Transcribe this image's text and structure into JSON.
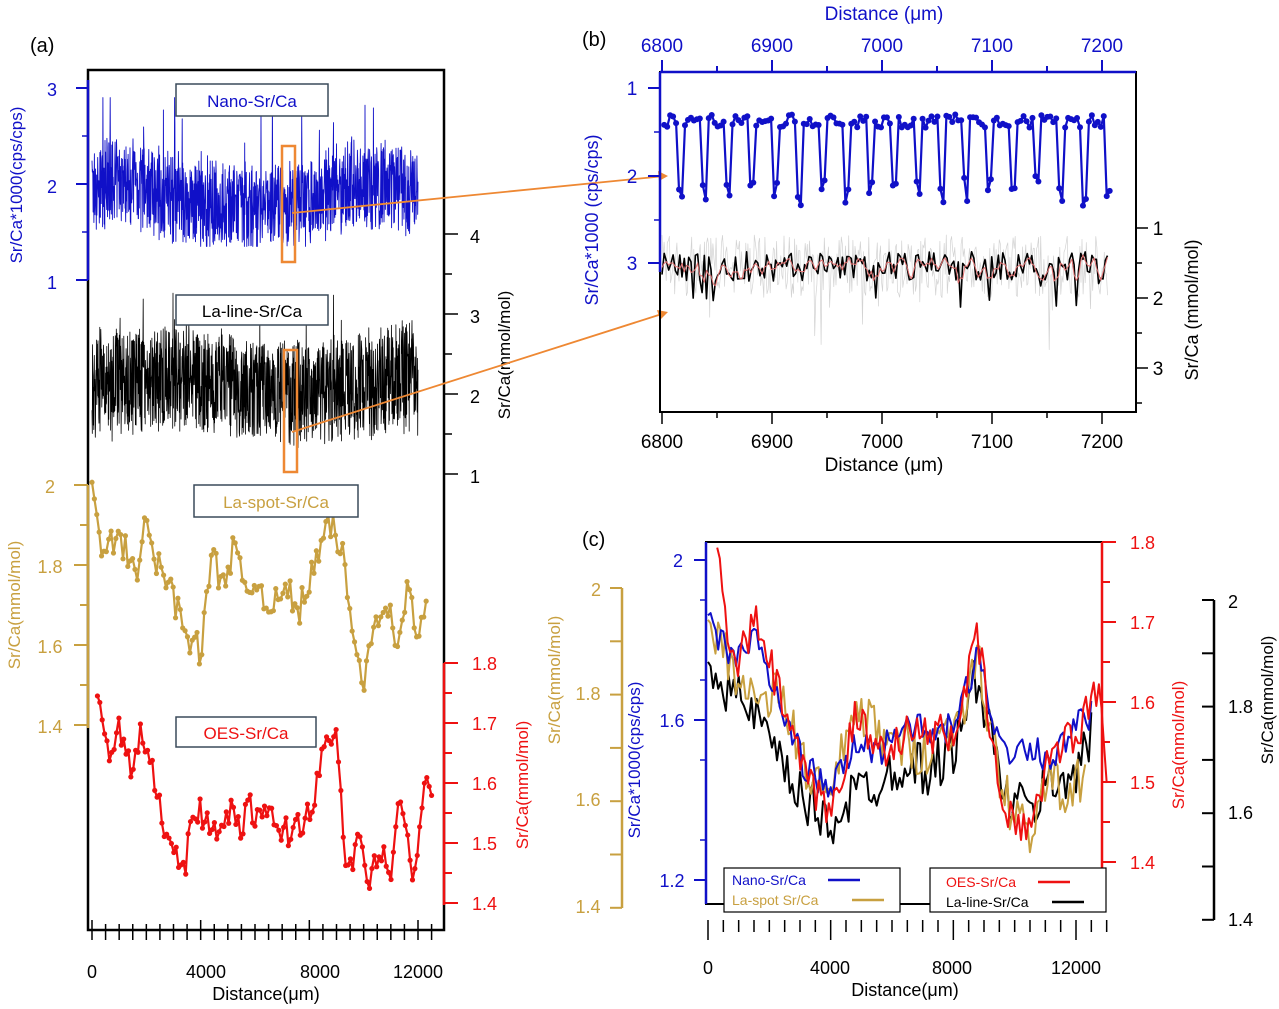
{
  "colors": {
    "nano": "#1010c8",
    "laline": "#000000",
    "laspot": "#c8a040",
    "oes": "#ee1111",
    "box": "#ee8833",
    "lalineSmooth": "#e07070",
    "lalineRaw": "#c8c8c8",
    "legendBorder": "#3a4a5a"
  },
  "panels": {
    "a": {
      "label": "(a)",
      "xlabel": "Distance(μm)",
      "xticks": [
        "0",
        "4000",
        "8000",
        "12000"
      ],
      "nano_axis_label": "Sr/Ca*1000(cps/cps)",
      "nano_ticks": [
        "1",
        "2",
        "3"
      ],
      "laline_axis_label": "Sr/Ca(mmol/mol)",
      "laline_ticks": [
        "1",
        "2",
        "3",
        "4"
      ],
      "laspot_axis_label": "Sr/Ca(mmol/mol)",
      "laspot_ticks": [
        "1.4",
        "1.6",
        "1.8",
        "2"
      ],
      "oes_axis_label": "Sr/Ca(mmol/mol)",
      "oes_ticks": [
        "1.4",
        "1.5",
        "1.6",
        "1.7",
        "1.8"
      ],
      "labels": {
        "nano": "Nano-Sr/Ca",
        "laline": "La-line-Sr/Ca",
        "laspot": "La-spot-Sr/Ca",
        "oes": "OES-Sr/Ca"
      }
    },
    "b": {
      "label": "(b)",
      "top_xlabel": "Distance (μm)",
      "bottom_xlabel": "Distance (μm)",
      "xticks": [
        "6800",
        "6900",
        "7000",
        "7100",
        "7200"
      ],
      "left_axis_label": "Sr/Ca*1000 (cps/cps)",
      "left_ticks": [
        "1",
        "2",
        "3"
      ],
      "right_axis_label": "Sr/Ca (mmol/mol)",
      "right_ticks": [
        "1",
        "2",
        "3"
      ]
    },
    "c": {
      "label": "(c)",
      "xlabel": "Distance(μm)",
      "xticks": [
        "0",
        "4000",
        "8000",
        "12000"
      ],
      "nano_axis_label": "Sr/Ca*1000(cps/cps)",
      "nano_ticks": [
        "1.2",
        "1.6",
        "2"
      ],
      "laspot_axis_label": "Sr/Ca(mmol/mol)",
      "laspot_ticks": [
        "1.4",
        "1.6",
        "1.8",
        "2"
      ],
      "oes_axis_label": "Sr/Ca(mmol/mol)",
      "oes_ticks": [
        "1.4",
        "1.5",
        "1.6",
        "1.7",
        "1.8"
      ],
      "laline_axis_label": "Sr/Ca(mmol/mol)",
      "laline_ticks": [
        "1.4",
        "1.6",
        "1.8",
        "2"
      ],
      "legend": {
        "nano": "Nano-Sr/Ca",
        "laspot": "La-spot Sr/Ca",
        "oes": "OES-Sr/Ca",
        "laline": "La-line-Sr/Ca"
      }
    }
  },
  "chart_data": [
    {
      "type": "line",
      "panel": "a",
      "x_range": [
        0,
        12500
      ],
      "series": [
        {
          "name": "Nano-Sr/Ca",
          "y_range_visible": [
            1.35,
            2.9
          ],
          "y_axis_ticks": [
            1,
            2,
            3
          ]
        },
        {
          "name": "La-line-Sr/Ca",
          "y_range_visible": [
            1.2,
            3.4
          ],
          "y_axis_ticks": [
            1,
            2,
            3,
            4
          ]
        },
        {
          "name": "La-spot-Sr/Ca",
          "x": [
            0,
            400,
            800,
            1200,
            1600,
            2000,
            2400,
            2800,
            3200,
            3600,
            4000,
            4400,
            4800,
            5200,
            5600,
            6000,
            6400,
            6800,
            7200,
            7600,
            8000,
            8400,
            8800,
            9200,
            9600,
            10000,
            10400,
            10800,
            11200,
            11600,
            12000,
            12300
          ],
          "y": [
            1.98,
            1.82,
            1.86,
            1.84,
            1.78,
            1.9,
            1.8,
            1.76,
            1.68,
            1.62,
            1.58,
            1.82,
            1.76,
            1.84,
            1.74,
            1.76,
            1.72,
            1.7,
            1.74,
            1.68,
            1.76,
            1.84,
            1.9,
            1.84,
            1.62,
            1.52,
            1.66,
            1.72,
            1.6,
            1.74,
            1.62,
            1.7
          ],
          "ylim": [
            1.4,
            2.0
          ]
        },
        {
          "name": "OES-Sr/Ca",
          "x": [
            200,
            600,
            1000,
            1400,
            1800,
            2200,
            2600,
            3000,
            3400,
            3800,
            4200,
            4600,
            5000,
            5400,
            5800,
            6200,
            6600,
            7000,
            7400,
            7800,
            8200,
            8600,
            9000,
            9400,
            9800,
            10200,
            10600,
            11000,
            11400,
            11800,
            12200,
            12500
          ],
          "y": [
            1.74,
            1.64,
            1.7,
            1.62,
            1.68,
            1.62,
            1.54,
            1.5,
            1.46,
            1.56,
            1.54,
            1.5,
            1.56,
            1.52,
            1.56,
            1.54,
            1.54,
            1.52,
            1.52,
            1.54,
            1.58,
            1.66,
            1.68,
            1.44,
            1.5,
            1.44,
            1.48,
            1.46,
            1.58,
            1.42,
            1.6,
            1.58
          ],
          "ylim": [
            1.4,
            1.8
          ]
        }
      ],
      "xlabel": "Distance(μm)"
    },
    {
      "type": "line",
      "panel": "b",
      "x_range": [
        6800,
        7200
      ],
      "series": [
        {
          "name": "Nano-Sr/Ca",
          "y_range": [
            1.25,
            2.35
          ],
          "y_axis": "left, inverted",
          "ylim": [
            1,
            3.2
          ]
        },
        {
          "name": "La-line-Sr/Ca",
          "y_range": [
            1.2,
            2.5
          ],
          "y_axis": "right, inverted",
          "ylim": [
            1,
            3.4
          ]
        }
      ],
      "xlabel": "Distance (μm)"
    },
    {
      "type": "line",
      "panel": "c",
      "x_range": [
        0,
        13000
      ],
      "series": [
        {
          "name": "Nano-Sr/Ca",
          "x": [
            0,
            800,
            1600,
            2400,
            3200,
            4000,
            4800,
            5600,
            6400,
            7200,
            8000,
            8800,
            9600,
            10400,
            11200,
            12000,
            12500
          ],
          "y": [
            1.84,
            1.76,
            1.8,
            1.62,
            1.48,
            1.42,
            1.54,
            1.52,
            1.6,
            1.56,
            1.58,
            1.76,
            1.52,
            1.54,
            1.5,
            1.58,
            1.62
          ],
          "ylim": [
            1.2,
            2.0
          ]
        },
        {
          "name": "La-spot Sr/Ca",
          "x": [
            0,
            800,
            1600,
            2400,
            3200,
            4000,
            4800,
            5600,
            6400,
            7200,
            8000,
            8800,
            9600,
            10400,
            11200,
            12000,
            12500
          ],
          "y": [
            1.94,
            1.86,
            1.78,
            1.8,
            1.66,
            1.6,
            1.78,
            1.72,
            1.7,
            1.7,
            1.74,
            1.86,
            1.62,
            1.54,
            1.64,
            1.62,
            1.7
          ],
          "ylim": [
            1.4,
            2.0
          ]
        },
        {
          "name": "OES-Sr/Ca",
          "x": [
            300,
            800,
            1600,
            2400,
            3200,
            4000,
            4800,
            5600,
            6400,
            7200,
            8000,
            8800,
            9600,
            10400,
            11200,
            12000,
            12800,
            13000
          ],
          "y": [
            1.78,
            1.64,
            1.7,
            1.6,
            1.5,
            1.46,
            1.58,
            1.54,
            1.56,
            1.56,
            1.56,
            1.68,
            1.46,
            1.44,
            1.54,
            1.56,
            1.62,
            1.5
          ],
          "ylim": [
            1.4,
            1.8
          ]
        },
        {
          "name": "La-line-Sr/Ca",
          "x": [
            0,
            800,
            1600,
            2400,
            3200,
            4000,
            4800,
            5600,
            6400,
            7200,
            8000,
            8800,
            9600,
            10400,
            11200,
            12000,
            12500
          ],
          "y": [
            1.9,
            1.82,
            1.78,
            1.68,
            1.62,
            1.58,
            1.64,
            1.66,
            1.7,
            1.68,
            1.72,
            1.86,
            1.64,
            1.6,
            1.66,
            1.68,
            1.74
          ],
          "ylim": [
            1.4,
            2.0
          ]
        }
      ],
      "xlabel": "Distance(μm)"
    }
  ]
}
